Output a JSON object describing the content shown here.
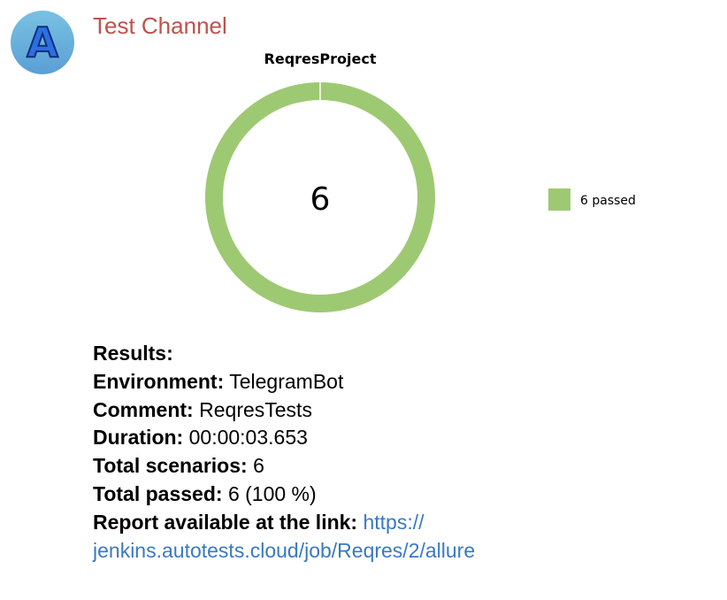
{
  "channel": {
    "name": "Test Channel",
    "avatar_letter": "A",
    "avatar_color": "#66acdc",
    "name_color": "#c0514b"
  },
  "chart_data": {
    "type": "pie",
    "style": "donut",
    "title": "ReqresProject",
    "center_label": "6",
    "slices": [
      {
        "label": "6 passed",
        "value": 6,
        "color": "#9ec973"
      }
    ],
    "legend_position": "right"
  },
  "results": {
    "heading": "Results:",
    "environment_label": "Environment:",
    "environment_value": "TelegramBot",
    "comment_label": "Comment:",
    "comment_value": "ReqresTests",
    "duration_label": "Duration:",
    "duration_value": "00:00:03.653",
    "scenarios_label": "Total scenarios:",
    "scenarios_value": "6",
    "passed_label": "Total passed:",
    "passed_value": "6 (100 %)",
    "report_label": "Report available at the link:",
    "report_link_part1": "https://",
    "report_link_part2": "jenkins.autotests.cloud/job/Reqres/2/allure"
  },
  "colors": {
    "link": "#3a79c2",
    "donut_fill": "#9ec973"
  }
}
